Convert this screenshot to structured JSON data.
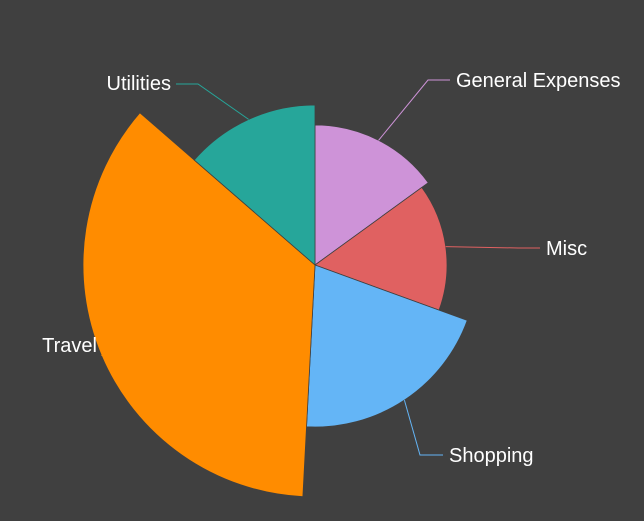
{
  "background_color": "#404040",
  "chart_data": {
    "type": "pie",
    "variant": "nightingale-rose",
    "title": "",
    "legend": "none",
    "slices": [
      {
        "label": "General Expenses",
        "angle_deg": 54,
        "radius": 140,
        "color": "#ce93d8"
      },
      {
        "label": "Misc",
        "angle_deg": 56,
        "radius": 132,
        "color": "#e06161"
      },
      {
        "label": "Shopping",
        "angle_deg": 73,
        "radius": 162,
        "color": "#64b5f6"
      },
      {
        "label": "Travel",
        "angle_deg": 128,
        "radius": 232,
        "color": "#ff8c00"
      },
      {
        "label": "Utilities",
        "angle_deg": 49,
        "radius": 160,
        "color": "#26a69a"
      }
    ]
  }
}
